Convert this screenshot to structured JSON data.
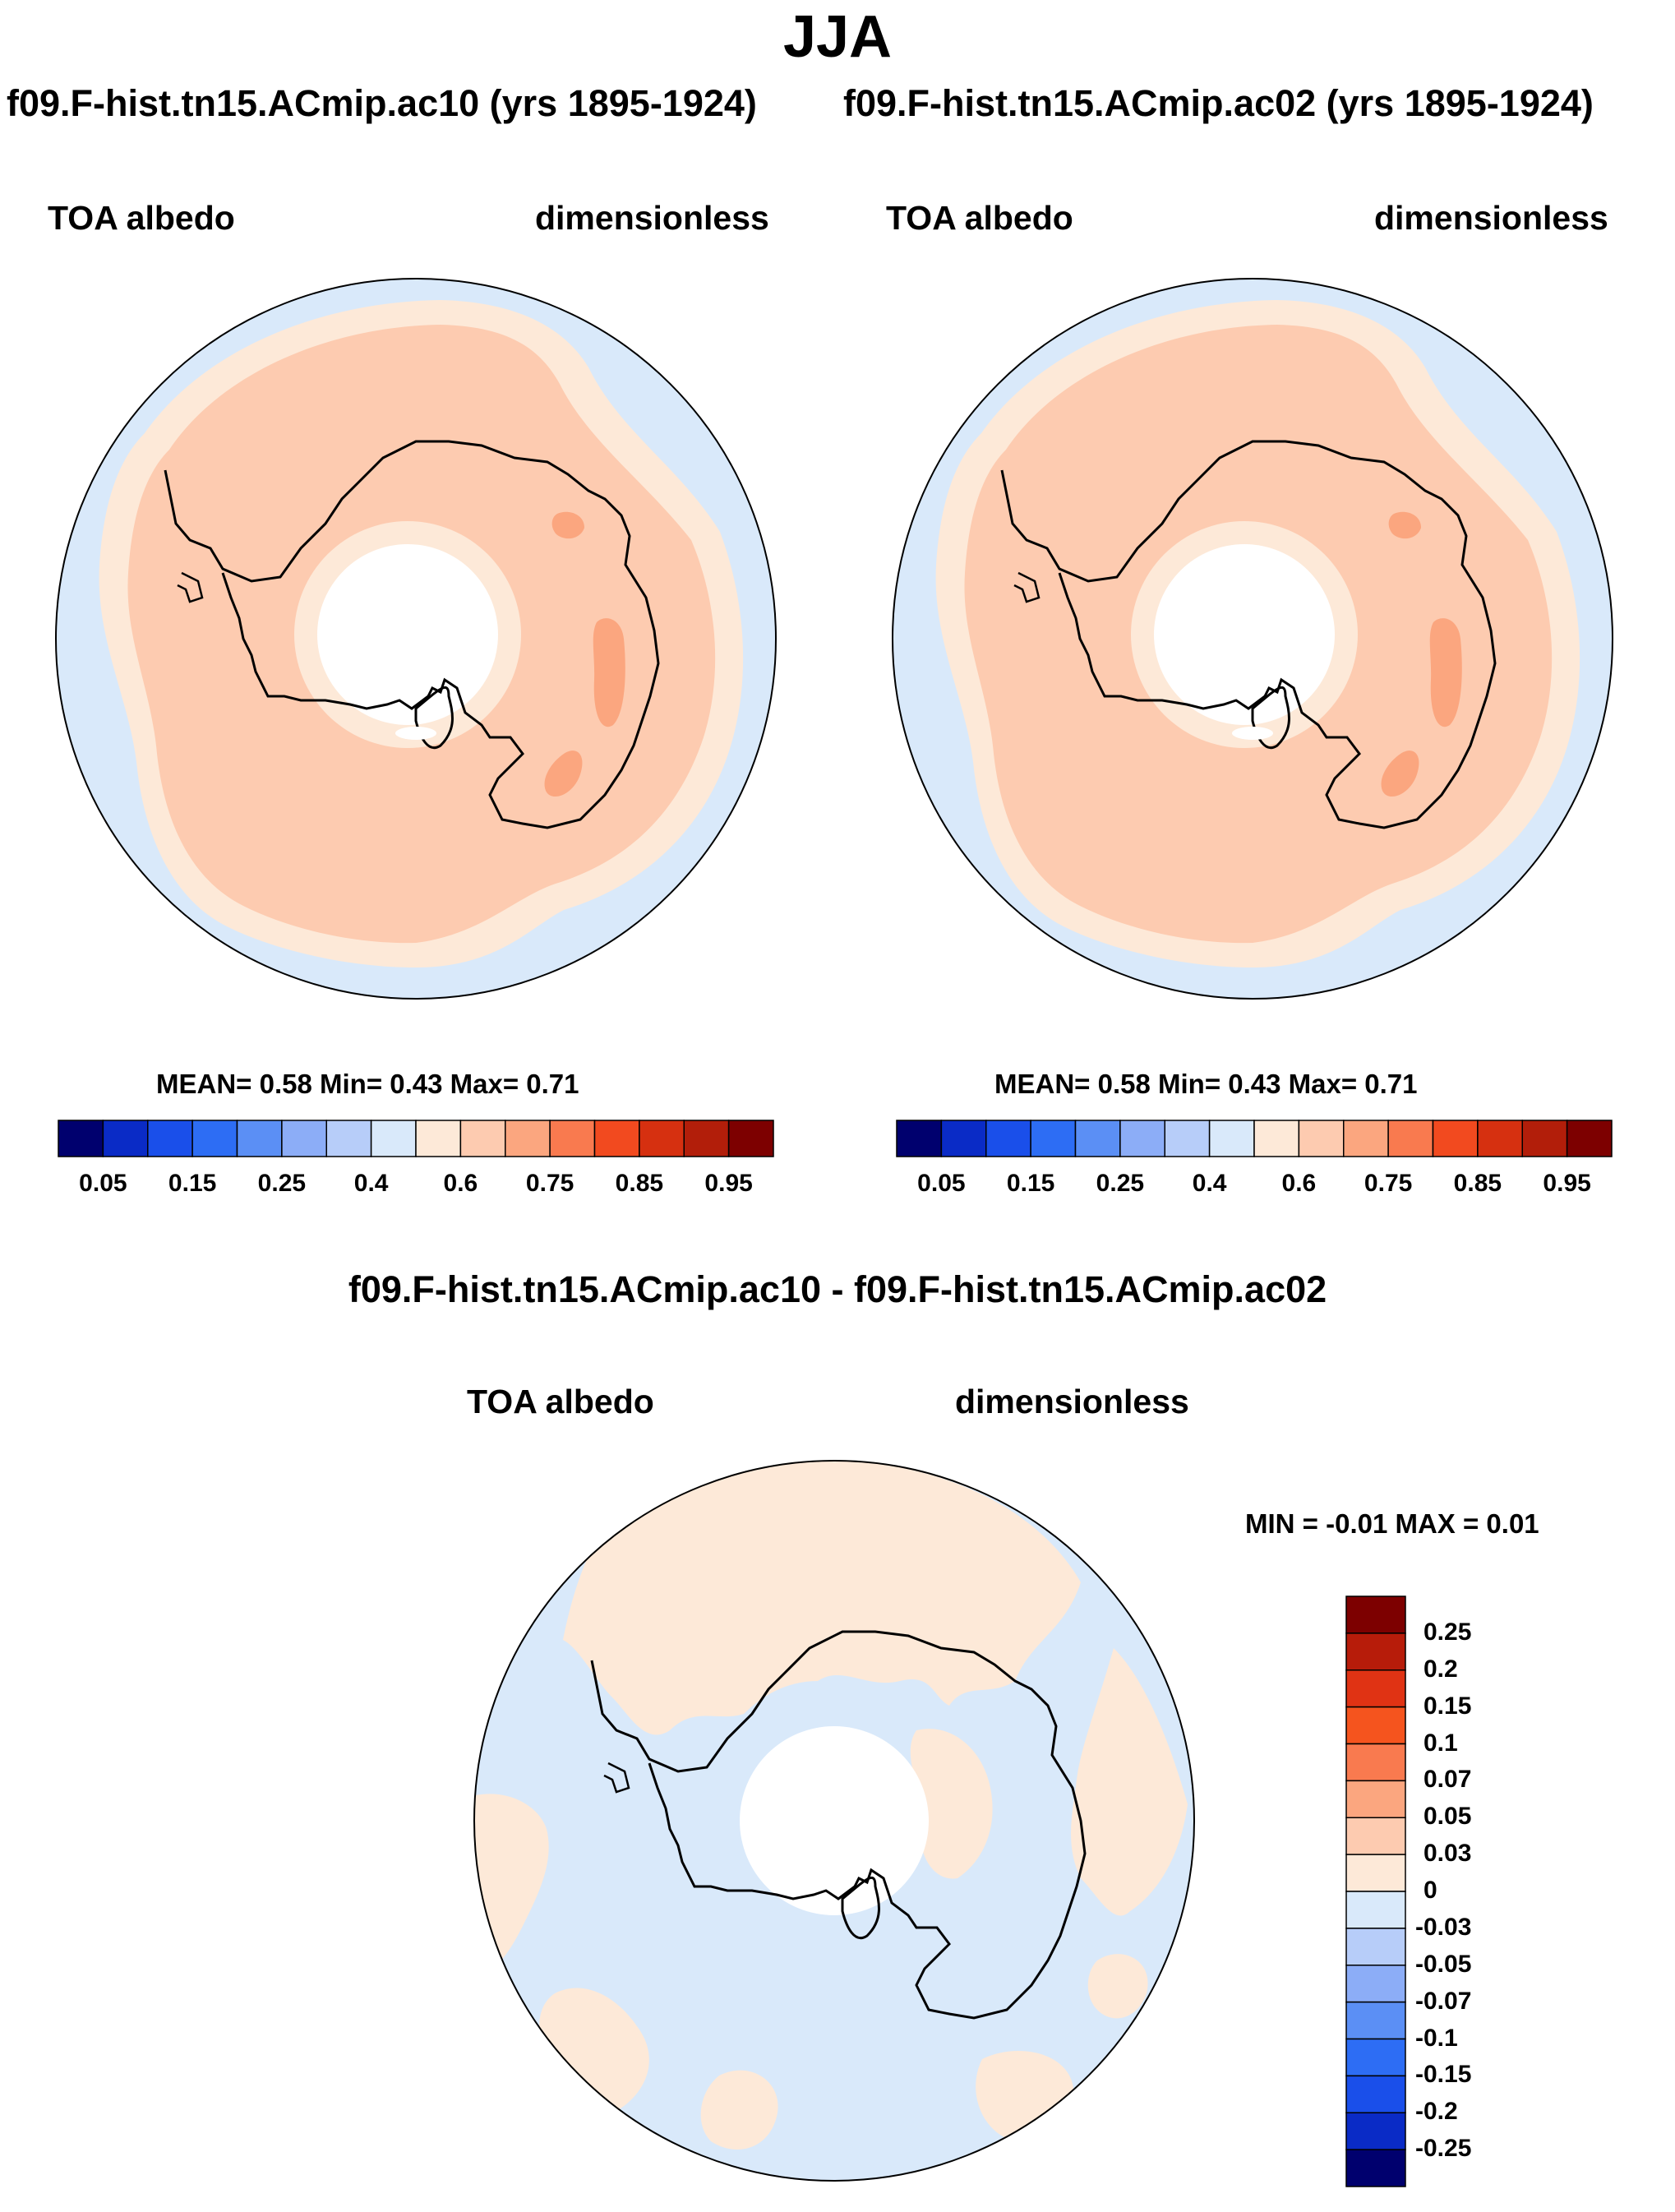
{
  "figure": {
    "title": "JJA",
    "diff_title": "f09.F-hist.tn15.ACmip.ac10 - f09.F-hist.tn15.ACmip.ac02"
  },
  "panels": [
    {
      "case": "f09.F-hist.tn15.ACmip.ac10 (yrs 1895-1924)",
      "variable": "TOA albedo",
      "units": "dimensionless",
      "stats": "MEAN=   0.58  Min=   0.43  Max=   0.71"
    },
    {
      "case": "f09.F-hist.tn15.ACmip.ac02 (yrs 1895-1924)",
      "variable": "TOA albedo",
      "units": "dimensionless",
      "stats": "MEAN=   0.58  Min=   0.43  Max=   0.71"
    }
  ],
  "diff_panel": {
    "variable": "TOA albedo",
    "units": "dimensionless",
    "stats": "MIN =  -0.01 MAX =   0.01"
  },
  "colorbar": {
    "colors": [
      "#00006e",
      "#0a2bc6",
      "#1a4fea",
      "#2d6df4",
      "#5b8ff5",
      "#8cadf7",
      "#b7cdf9",
      "#d9e9fa",
      "#fde9d8",
      "#fdcbb0",
      "#fba67f",
      "#f97a4f",
      "#f24a1f",
      "#d63010",
      "#b21e0a",
      "#7d0000"
    ],
    "labels": [
      "0.05",
      "0.15",
      "0.25",
      "0.4",
      "0.6",
      "0.75",
      "0.85",
      "0.95"
    ]
  },
  "diff_colorbar": {
    "colors": [
      "#7d0000",
      "#b71c0a",
      "#e03314",
      "#f5541e",
      "#f97a4f",
      "#fba67f",
      "#fdcbb0",
      "#fde9d8",
      "#d9e9fa",
      "#b7cdf9",
      "#8cadf7",
      "#5b8ff5",
      "#2d6df4",
      "#1a4fea",
      "#0a2bc6",
      "#00006e"
    ],
    "labels": [
      "0.25",
      "0.2",
      "0.15",
      "0.1",
      "0.07",
      "0.05",
      "0.03",
      "0",
      "-0.03",
      "-0.05",
      "-0.07",
      "-0.1",
      "-0.15",
      "-0.2",
      "-0.25"
    ]
  },
  "colors": {
    "ocean_low": "#d9e9fa",
    "level_06": "#fde9d8",
    "level_075": "#fdcbb0",
    "level_085": "#fba67f",
    "coast": "#000000"
  }
}
